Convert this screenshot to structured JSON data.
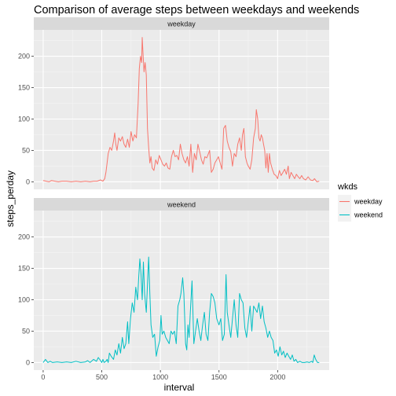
{
  "chart_data": {
    "type": "line",
    "title": "Comparison of average steps between weekdays and weekends",
    "xlabel": "interval",
    "ylabel": "steps_perday",
    "xlim": [
      -80,
      2440
    ],
    "ylim": [
      -12,
      242
    ],
    "xticks": [
      0,
      500,
      1000,
      1500,
      2000
    ],
    "yticks": [
      0,
      50,
      100,
      150,
      200
    ],
    "grid": true,
    "legend": {
      "title": "wkds",
      "placement": "right",
      "entries": [
        {
          "label": "weekday",
          "color": "#F8766D"
        },
        {
          "label": "weekend",
          "color": "#00BFC4"
        }
      ]
    },
    "panels": [
      {
        "strip": "weekday",
        "series": "weekday",
        "color": "#F8766D",
        "points": [
          [
            0,
            2
          ],
          [
            25,
            1
          ],
          [
            50,
            0
          ],
          [
            70,
            2
          ],
          [
            100,
            1
          ],
          [
            130,
            0
          ],
          [
            160,
            1
          ],
          [
            200,
            1
          ],
          [
            240,
            0
          ],
          [
            280,
            1
          ],
          [
            320,
            0
          ],
          [
            360,
            1
          ],
          [
            400,
            0
          ],
          [
            430,
            1
          ],
          [
            460,
            1
          ],
          [
            490,
            3
          ],
          [
            510,
            1
          ],
          [
            525,
            5
          ],
          [
            535,
            15
          ],
          [
            545,
            30
          ],
          [
            555,
            45
          ],
          [
            570,
            55
          ],
          [
            585,
            50
          ],
          [
            600,
            65
          ],
          [
            610,
            78
          ],
          [
            620,
            60
          ],
          [
            630,
            50
          ],
          [
            645,
            70
          ],
          [
            660,
            65
          ],
          [
            675,
            72
          ],
          [
            690,
            60
          ],
          [
            705,
            55
          ],
          [
            720,
            68
          ],
          [
            735,
            55
          ],
          [
            750,
            80
          ],
          [
            765,
            65
          ],
          [
            780,
            75
          ],
          [
            795,
            70
          ],
          [
            810,
            125
          ],
          [
            820,
            180
          ],
          [
            830,
            200
          ],
          [
            840,
            190
          ],
          [
            845,
            230
          ],
          [
            850,
            210
          ],
          [
            860,
            175
          ],
          [
            870,
            190
          ],
          [
            880,
            170
          ],
          [
            890,
            85
          ],
          [
            900,
            55
          ],
          [
            910,
            30
          ],
          [
            920,
            40
          ],
          [
            930,
            22
          ],
          [
            945,
            18
          ],
          [
            960,
            35
          ],
          [
            975,
            28
          ],
          [
            990,
            42
          ],
          [
            1005,
            35
          ],
          [
            1020,
            28
          ],
          [
            1035,
            25
          ],
          [
            1050,
            30
          ],
          [
            1065,
            22
          ],
          [
            1080,
            20
          ],
          [
            1095,
            40
          ],
          [
            1110,
            50
          ],
          [
            1125,
            40
          ],
          [
            1140,
            42
          ],
          [
            1155,
            35
          ],
          [
            1170,
            60
          ],
          [
            1185,
            45
          ],
          [
            1200,
            35
          ],
          [
            1215,
            30
          ],
          [
            1230,
            40
          ],
          [
            1245,
            25
          ],
          [
            1260,
            60
          ],
          [
            1275,
            15
          ],
          [
            1290,
            45
          ],
          [
            1305,
            35
          ],
          [
            1320,
            60
          ],
          [
            1335,
            48
          ],
          [
            1350,
            35
          ],
          [
            1365,
            28
          ],
          [
            1380,
            40
          ],
          [
            1395,
            38
          ],
          [
            1410,
            45
          ],
          [
            1420,
            50
          ],
          [
            1435,
            15
          ],
          [
            1450,
            20
          ],
          [
            1465,
            30
          ],
          [
            1480,
            35
          ],
          [
            1495,
            40
          ],
          [
            1510,
            30
          ],
          [
            1525,
            20
          ],
          [
            1540,
            85
          ],
          [
            1555,
            90
          ],
          [
            1570,
            65
          ],
          [
            1585,
            55
          ],
          [
            1600,
            48
          ],
          [
            1615,
            25
          ],
          [
            1630,
            45
          ],
          [
            1645,
            40
          ],
          [
            1660,
            60
          ],
          [
            1675,
            70
          ],
          [
            1690,
            50
          ],
          [
            1700,
            75
          ],
          [
            1712,
            85
          ],
          [
            1725,
            40
          ],
          [
            1738,
            30
          ],
          [
            1750,
            25
          ],
          [
            1765,
            20
          ],
          [
            1780,
            35
          ],
          [
            1795,
            70
          ],
          [
            1810,
            85
          ],
          [
            1818,
            115
          ],
          [
            1830,
            100
          ],
          [
            1840,
            70
          ],
          [
            1850,
            65
          ],
          [
            1860,
            75
          ],
          [
            1870,
            70
          ],
          [
            1880,
            60
          ],
          [
            1890,
            50
          ],
          [
            1900,
            22
          ],
          [
            1910,
            45
          ],
          [
            1920,
            15
          ],
          [
            1930,
            45
          ],
          [
            1940,
            30
          ],
          [
            1955,
            20
          ],
          [
            1970,
            12
          ],
          [
            1985,
            10
          ],
          [
            2000,
            5
          ],
          [
            2015,
            18
          ],
          [
            2030,
            10
          ],
          [
            2045,
            15
          ],
          [
            2060,
            20
          ],
          [
            2075,
            12
          ],
          [
            2090,
            25
          ],
          [
            2100,
            5
          ],
          [
            2115,
            15
          ],
          [
            2130,
            10
          ],
          [
            2145,
            5
          ],
          [
            2160,
            12
          ],
          [
            2175,
            8
          ],
          [
            2190,
            5
          ],
          [
            2205,
            10
          ],
          [
            2220,
            5
          ],
          [
            2240,
            3
          ],
          [
            2260,
            8
          ],
          [
            2280,
            3
          ],
          [
            2300,
            2
          ],
          [
            2315,
            5
          ],
          [
            2335,
            0
          ],
          [
            2355,
            1
          ]
        ]
      },
      {
        "strip": "weekend",
        "series": "weekend",
        "color": "#00BFC4",
        "points": [
          [
            0,
            0
          ],
          [
            20,
            5
          ],
          [
            40,
            0
          ],
          [
            60,
            2
          ],
          [
            80,
            0
          ],
          [
            120,
            1
          ],
          [
            160,
            0
          ],
          [
            200,
            1
          ],
          [
            240,
            0
          ],
          [
            280,
            2
          ],
          [
            320,
            0
          ],
          [
            360,
            1
          ],
          [
            380,
            3
          ],
          [
            400,
            0
          ],
          [
            430,
            5
          ],
          [
            455,
            2
          ],
          [
            470,
            8
          ],
          [
            490,
            3
          ],
          [
            500,
            0
          ],
          [
            510,
            5
          ],
          [
            520,
            0
          ],
          [
            535,
            2
          ],
          [
            545,
            5
          ],
          [
            555,
            0
          ],
          [
            565,
            15
          ],
          [
            580,
            10
          ],
          [
            600,
            5
          ],
          [
            615,
            20
          ],
          [
            630,
            12
          ],
          [
            645,
            30
          ],
          [
            660,
            15
          ],
          [
            675,
            40
          ],
          [
            690,
            22
          ],
          [
            705,
            30
          ],
          [
            720,
            65
          ],
          [
            730,
            30
          ],
          [
            745,
            70
          ],
          [
            760,
            95
          ],
          [
            775,
            80
          ],
          [
            790,
            120
          ],
          [
            805,
            100
          ],
          [
            815,
            135
          ],
          [
            825,
            165
          ],
          [
            835,
            140
          ],
          [
            845,
            100
          ],
          [
            855,
            160
          ],
          [
            865,
            110
          ],
          [
            880,
            80
          ],
          [
            890,
            125
          ],
          [
            900,
            168
          ],
          [
            910,
            110
          ],
          [
            920,
            60
          ],
          [
            935,
            40
          ],
          [
            950,
            45
          ],
          [
            965,
            10
          ],
          [
            980,
            25
          ],
          [
            995,
            35
          ],
          [
            1005,
            75
          ],
          [
            1015,
            45
          ],
          [
            1030,
            50
          ],
          [
            1045,
            40
          ],
          [
            1060,
            35
          ],
          [
            1075,
            30
          ],
          [
            1090,
            50
          ],
          [
            1105,
            45
          ],
          [
            1120,
            50
          ],
          [
            1135,
            30
          ],
          [
            1150,
            90
          ],
          [
            1165,
            100
          ],
          [
            1175,
            110
          ],
          [
            1190,
            135
          ],
          [
            1200,
            110
          ],
          [
            1215,
            30
          ],
          [
            1225,
            20
          ],
          [
            1235,
            60
          ],
          [
            1245,
            40
          ],
          [
            1255,
            80
          ],
          [
            1270,
            130
          ],
          [
            1285,
            30
          ],
          [
            1300,
            50
          ],
          [
            1315,
            70
          ],
          [
            1330,
            50
          ],
          [
            1345,
            35
          ],
          [
            1360,
            60
          ],
          [
            1375,
            80
          ],
          [
            1390,
            45
          ],
          [
            1405,
            35
          ],
          [
            1420,
            80
          ],
          [
            1435,
            110
          ],
          [
            1450,
            105
          ],
          [
            1465,
            95
          ],
          [
            1480,
            70
          ],
          [
            1500,
            60
          ],
          [
            1515,
            70
          ],
          [
            1530,
            35
          ],
          [
            1545,
            45
          ],
          [
            1560,
            140
          ],
          [
            1570,
            80
          ],
          [
            1585,
            60
          ],
          [
            1600,
            40
          ],
          [
            1615,
            70
          ],
          [
            1630,
            100
          ],
          [
            1645,
            60
          ],
          [
            1660,
            40
          ],
          [
            1675,
            110
          ],
          [
            1690,
            100
          ],
          [
            1705,
            95
          ],
          [
            1720,
            55
          ],
          [
            1735,
            40
          ],
          [
            1750,
            65
          ],
          [
            1765,
            90
          ],
          [
            1780,
            50
          ],
          [
            1795,
            90
          ],
          [
            1810,
            85
          ],
          [
            1825,
            80
          ],
          [
            1840,
            95
          ],
          [
            1855,
            70
          ],
          [
            1870,
            90
          ],
          [
            1885,
            65
          ],
          [
            1900,
            55
          ],
          [
            1915,
            40
          ],
          [
            1930,
            50
          ],
          [
            1945,
            40
          ],
          [
            1960,
            35
          ],
          [
            1975,
            15
          ],
          [
            1990,
            20
          ],
          [
            2005,
            10
          ],
          [
            2020,
            25
          ],
          [
            2035,
            12
          ],
          [
            2050,
            18
          ],
          [
            2065,
            8
          ],
          [
            2080,
            15
          ],
          [
            2095,
            10
          ],
          [
            2110,
            5
          ],
          [
            2125,
            12
          ],
          [
            2140,
            2
          ],
          [
            2155,
            5
          ],
          [
            2170,
            0
          ],
          [
            2190,
            2
          ],
          [
            2210,
            0
          ],
          [
            2230,
            0
          ],
          [
            2250,
            1
          ],
          [
            2270,
            0
          ],
          [
            2290,
            2
          ],
          [
            2300,
            0
          ],
          [
            2312,
            12
          ],
          [
            2325,
            5
          ],
          [
            2340,
            0
          ],
          [
            2355,
            0
          ]
        ]
      }
    ]
  }
}
